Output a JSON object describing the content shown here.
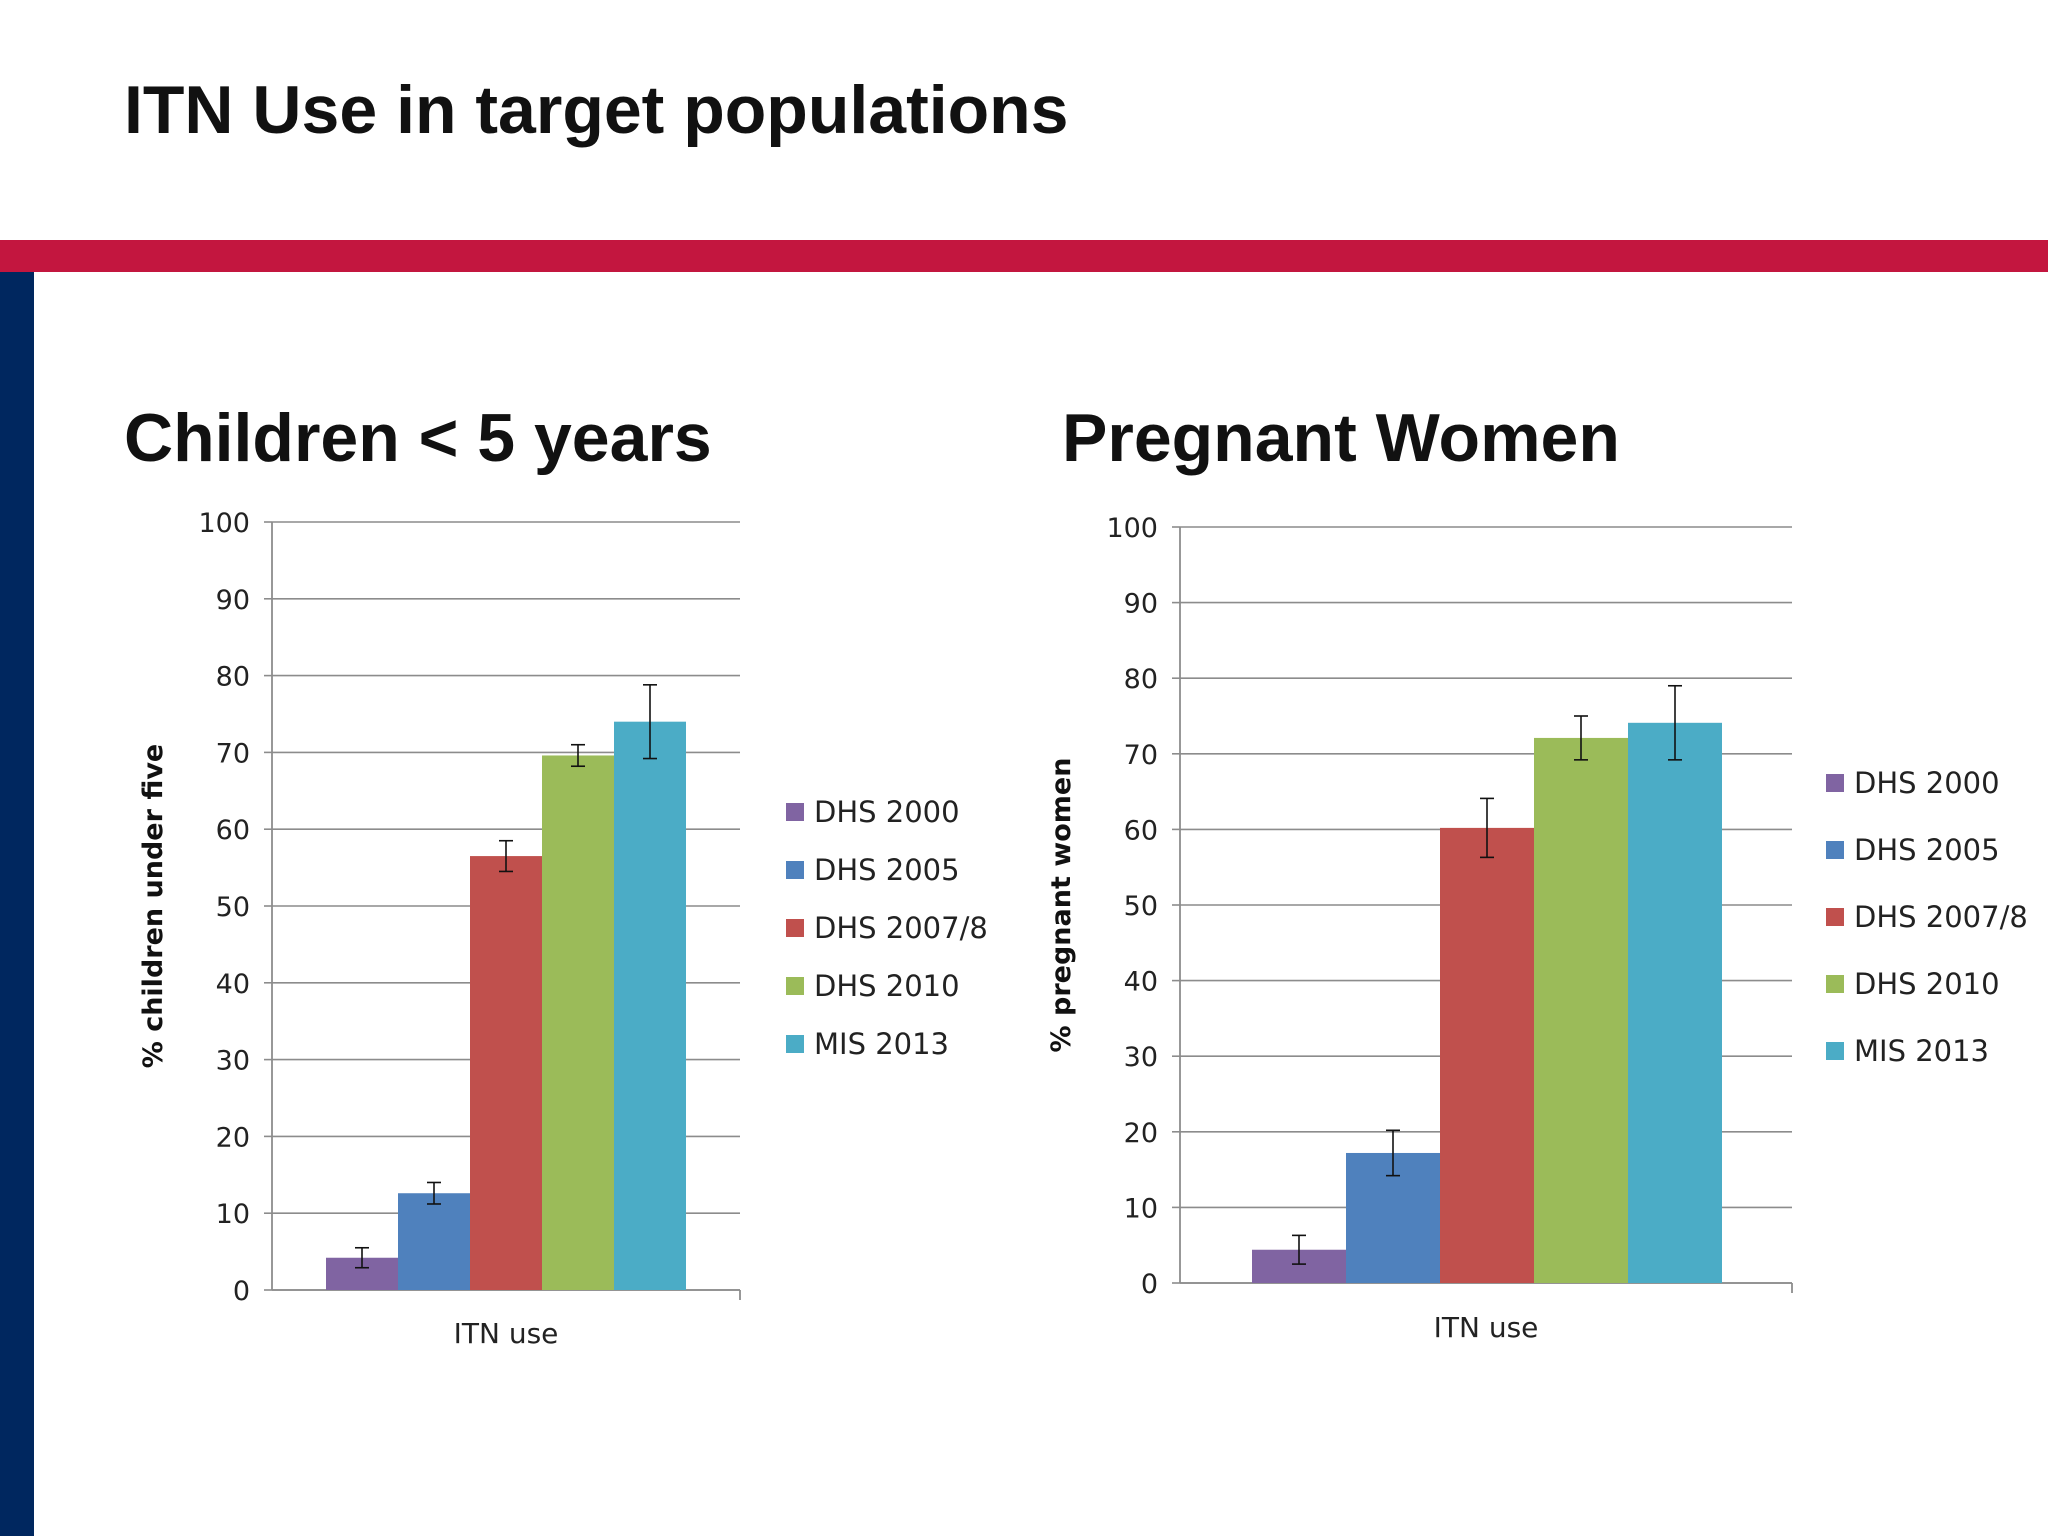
{
  "slide": {
    "title": "ITN Use in target populations",
    "accent_color": "#c3163f",
    "side_color": "#00275f"
  },
  "chart_data": [
    {
      "type": "bar",
      "title": "Children < 5 years",
      "xlabel": "",
      "ylabel": "% children under five",
      "categories": [
        "ITN use"
      ],
      "ylim": [
        0,
        100
      ],
      "yticks": [
        0,
        10,
        20,
        30,
        40,
        50,
        60,
        70,
        80,
        90,
        100
      ],
      "grid": true,
      "legend_position": "right",
      "series": [
        {
          "name": "DHS 2000",
          "color": "#8064a2",
          "values": [
            4.2
          ],
          "error": [
            1.3
          ]
        },
        {
          "name": "DHS 2005",
          "color": "#4f81bd",
          "values": [
            12.6
          ],
          "error": [
            1.4
          ]
        },
        {
          "name": "DHS 2007/8",
          "color": "#c0504d",
          "values": [
            56.5
          ],
          "error": [
            2.0
          ]
        },
        {
          "name": "DHS 2010",
          "color": "#9bbb59",
          "values": [
            69.6
          ],
          "error": [
            1.4
          ]
        },
        {
          "name": "MIS 2013",
          "color": "#4bacc6",
          "values": [
            74.0
          ],
          "error": [
            4.8
          ]
        }
      ]
    },
    {
      "type": "bar",
      "title": "Pregnant Women",
      "xlabel": "",
      "ylabel": "% pregnant women",
      "categories": [
        "ITN use"
      ],
      "ylim": [
        0,
        100
      ],
      "yticks": [
        0,
        10,
        20,
        30,
        40,
        50,
        60,
        70,
        80,
        90,
        100
      ],
      "grid": true,
      "legend_position": "right",
      "series": [
        {
          "name": "DHS 2000",
          "color": "#8064a2",
          "values": [
            4.4
          ],
          "error": [
            1.9
          ]
        },
        {
          "name": "DHS 2005",
          "color": "#4f81bd",
          "values": [
            17.2
          ],
          "error": [
            3.0
          ]
        },
        {
          "name": "DHS 2007/8",
          "color": "#c0504d",
          "values": [
            60.2
          ],
          "error": [
            3.9
          ]
        },
        {
          "name": "DHS 2010",
          "color": "#9bbb59",
          "values": [
            72.1
          ],
          "error": [
            2.9
          ]
        },
        {
          "name": "MIS 2013",
          "color": "#4bacc6",
          "values": [
            74.1
          ],
          "error": [
            4.9
          ]
        }
      ]
    }
  ]
}
